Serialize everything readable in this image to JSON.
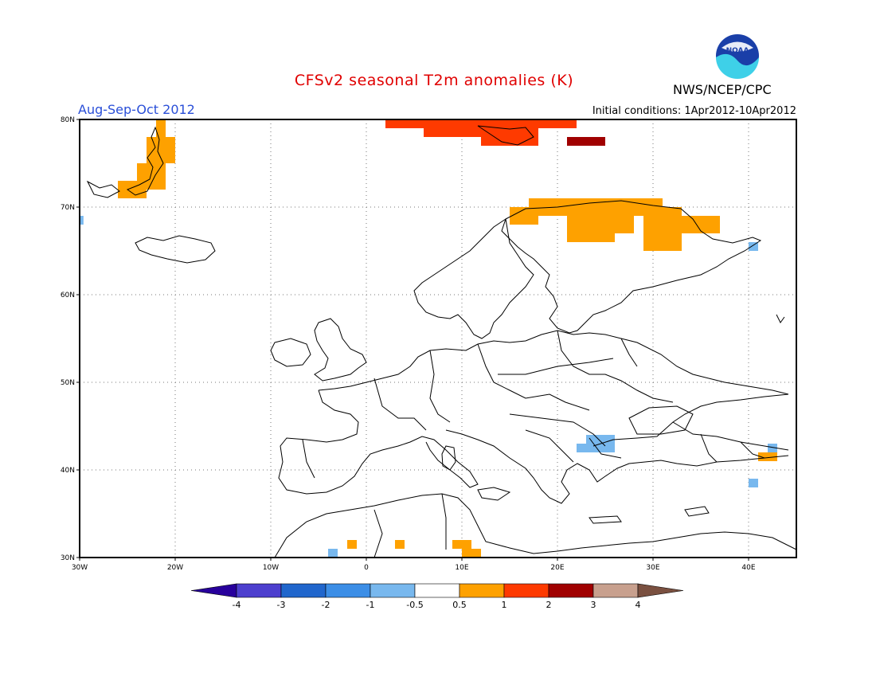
{
  "header": {
    "title": "CFSv2 seasonal T2m anomalies (K)",
    "season": "Aug-Sep-Oct 2012",
    "initial_conditions": "Initial conditions: 1Apr2012-10Apr2012",
    "agency": "NWS/NCEP/CPC",
    "logo_text": "NOAA"
  },
  "map": {
    "lon_range": [
      -30,
      45
    ],
    "lat_range": [
      30,
      80
    ],
    "lon_ticks": [
      "30W",
      "20W",
      "10W",
      "0",
      "10E",
      "20E",
      "30E",
      "40E"
    ],
    "lat_ticks": [
      "30N",
      "40N",
      "50N",
      "60N",
      "70N",
      "80N"
    ],
    "anomaly_cells": [
      {
        "lon": -22,
        "lat": 78,
        "w": 1,
        "h": 2,
        "cat": "0.5-1"
      },
      {
        "lon": -23,
        "lat": 75,
        "w": 3,
        "h": 3,
        "cat": "0.5-1"
      },
      {
        "lon": -24,
        "lat": 72,
        "w": 3,
        "h": 3,
        "cat": "0.5-1"
      },
      {
        "lon": -26,
        "lat": 71,
        "w": 3,
        "h": 2,
        "cat": "0.5-1"
      },
      {
        "lon": -30,
        "lat": 68,
        "w": 0.4,
        "h": 1,
        "cat": "-1--0.5"
      },
      {
        "lon": 2,
        "lat": 79,
        "w": 4,
        "h": 1,
        "cat": "1-2"
      },
      {
        "lon": 6,
        "lat": 78,
        "w": 6,
        "h": 2,
        "cat": "1-2"
      },
      {
        "lon": 12,
        "lat": 77,
        "w": 6,
        "h": 3,
        "cat": "1-2"
      },
      {
        "lon": 18,
        "lat": 79,
        "w": 4,
        "h": 1,
        "cat": "1-2"
      },
      {
        "lon": 21,
        "lat": 77,
        "w": 4,
        "h": 1,
        "cat": "2-3"
      },
      {
        "lon": 15,
        "lat": 68,
        "w": 3,
        "h": 2,
        "cat": "0.5-1"
      },
      {
        "lon": 17,
        "lat": 69,
        "w": 4,
        "h": 2,
        "cat": "0.5-1"
      },
      {
        "lon": 21,
        "lat": 66,
        "w": 5,
        "h": 5,
        "cat": "0.5-1"
      },
      {
        "lon": 26,
        "lat": 67,
        "w": 2,
        "h": 4,
        "cat": "0.5-1"
      },
      {
        "lon": 28,
        "lat": 69,
        "w": 3,
        "h": 2,
        "cat": "0.5-1"
      },
      {
        "lon": 29,
        "lat": 65,
        "w": 4,
        "h": 4,
        "cat": "0.5-1"
      },
      {
        "lon": 31,
        "lat": 69,
        "w": 2,
        "h": 1,
        "cat": "0.5-1"
      },
      {
        "lon": 33,
        "lat": 67,
        "w": 4,
        "h": 2,
        "cat": "0.5-1"
      },
      {
        "lon": 40,
        "lat": 65,
        "w": 1,
        "h": 1,
        "cat": "-1--0.5"
      },
      {
        "lon": 22,
        "lat": 42,
        "w": 1,
        "h": 1,
        "cat": "-1--0.5"
      },
      {
        "lon": 23,
        "lat": 42,
        "w": 3,
        "h": 2,
        "cat": "-1--0.5"
      },
      {
        "lon": 24,
        "lat": 43,
        "w": 2,
        "h": 1,
        "cat": "-1--0.5"
      },
      {
        "lon": 42,
        "lat": 42,
        "w": 1,
        "h": 1,
        "cat": "-1--0.5"
      },
      {
        "lon": 41,
        "lat": 41,
        "w": 2,
        "h": 1,
        "cat": "0.5-1"
      },
      {
        "lon": 40,
        "lat": 38,
        "w": 1,
        "h": 1,
        "cat": "-1--0.5"
      },
      {
        "lon": -4,
        "lat": 30,
        "w": 1,
        "h": 1,
        "cat": "-1--0.5"
      },
      {
        "lon": -2,
        "lat": 31,
        "w": 1,
        "h": 1,
        "cat": "0.5-1"
      },
      {
        "lon": 3,
        "lat": 31,
        "w": 1,
        "h": 1,
        "cat": "0.5-1"
      },
      {
        "lon": 9,
        "lat": 31,
        "w": 2,
        "h": 1,
        "cat": "0.5-1"
      },
      {
        "lon": 10,
        "lat": 30,
        "w": 2,
        "h": 1,
        "cat": "0.5-1"
      }
    ]
  },
  "colorbar": {
    "labels": [
      "-4",
      "-3",
      "-2",
      "-1",
      "-0.5",
      "0.5",
      "1",
      "2",
      "3",
      "4"
    ],
    "colors": {
      "lt-4": "#28009c",
      "-4--3": "#4d3fce",
      "-3--2": "#2066cc",
      "-2--1": "#3c8ee6",
      "-1--0.5": "#78b8ee",
      "-0.5-0.5": "#ffffff",
      "0.5-1": "#fea100",
      "1-2": "#fe3a00",
      "2-3": "#a00000",
      "3-4": "#c8a08e",
      "gt4": "#7a5040"
    }
  }
}
